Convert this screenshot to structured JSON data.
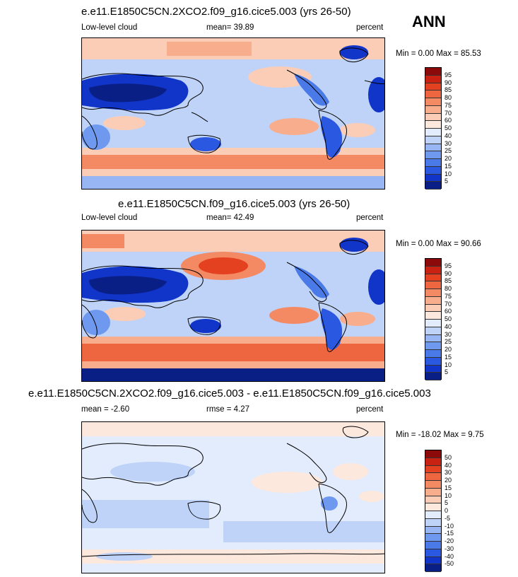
{
  "season": "ANN",
  "colors": {
    "abs_scale": [
      "#0a1f86",
      "#1035c8",
      "#2a58e0",
      "#4a7ae8",
      "#6f99ee",
      "#97b6f3",
      "#bfd3f8",
      "#e2ecfc",
      "#fde8de",
      "#fbcdb6",
      "#f8ad8c",
      "#f48a64",
      "#ee6640",
      "#e3411f",
      "#c92212",
      "#8c0a0a"
    ],
    "diff_scale": [
      "#0a1f86",
      "#1035c8",
      "#2a58e0",
      "#4a7ae8",
      "#6f99ee",
      "#97b6f3",
      "#bfd3f8",
      "#e2ecfc",
      "#fde8de",
      "#fbcdb6",
      "#f8ad8c",
      "#f48a64",
      "#ee6640",
      "#e3411f",
      "#c92212",
      "#8c0a0a"
    ]
  },
  "panels": [
    {
      "title": "e.e11.E1850C5CN.2XCO2.f09_g16.cice5.003 (yrs 26-50)",
      "left_label": "Low-level cloud",
      "center_label": "mean=  39.89",
      "units": "percent",
      "minmax": "Min =   0.00 Max =  85.53",
      "levels": [
        "95",
        "90",
        "85",
        "80",
        "75",
        "70",
        "60",
        "50",
        "40",
        "30",
        "25",
        "20",
        "15",
        "10",
        "5"
      ]
    },
    {
      "title": "e.e11.E1850C5CN.f09_g16.cice5.003 (yrs 26-50)",
      "left_label": "Low-level cloud",
      "center_label": "mean=  42.49",
      "units": "percent",
      "minmax": "Min =   0.00 Max =  90.66",
      "levels": [
        "95",
        "90",
        "85",
        "80",
        "75",
        "70",
        "60",
        "50",
        "40",
        "30",
        "25",
        "20",
        "15",
        "10",
        "5"
      ]
    },
    {
      "title": "e.e11.E1850C5CN.2XCO2.f09_g16.cice5.003 - e.e11.E1850C5CN.f09_g16.cice5.003",
      "left_label": "mean =  -2.60",
      "center_label": "rmse =   4.27",
      "units": "percent",
      "minmax": "Min = -18.02 Max =   9.75",
      "levels": [
        "50",
        "40",
        "30",
        "20",
        "15",
        "10",
        "5",
        "0",
        "-5",
        "-10",
        "-15",
        "-20",
        "-30",
        "-40",
        "-50"
      ]
    }
  ]
}
